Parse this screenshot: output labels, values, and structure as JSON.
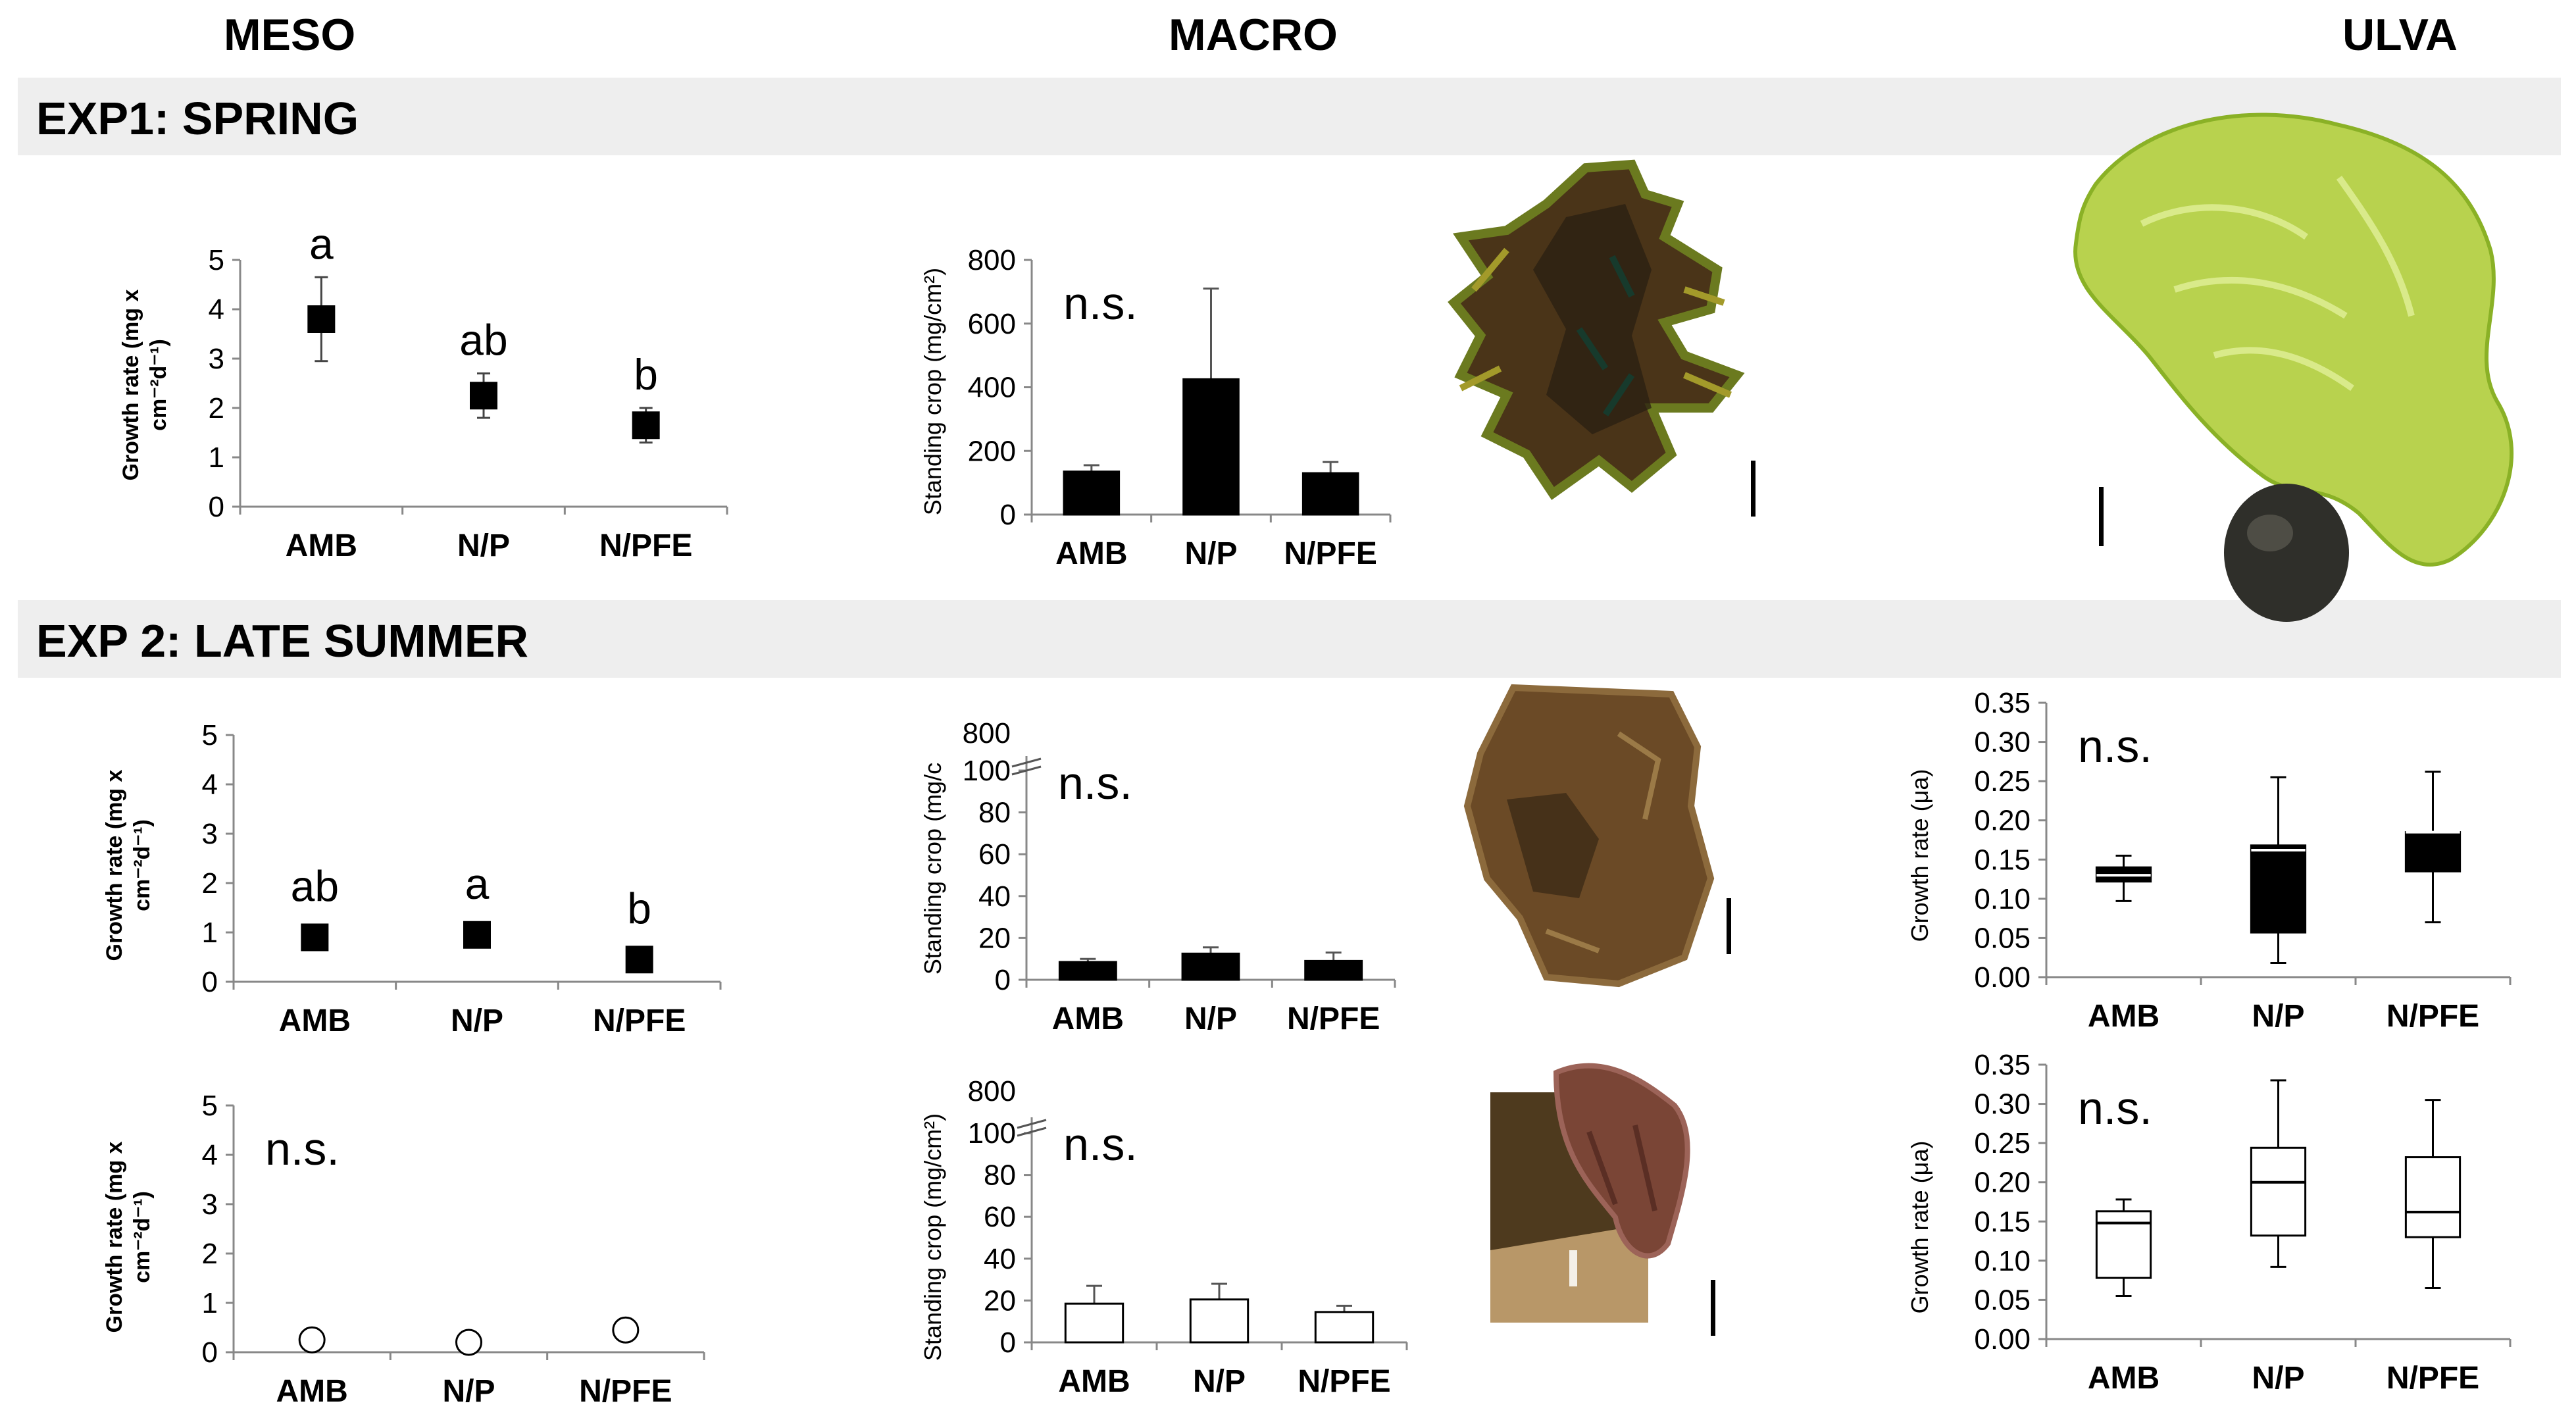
{
  "columns": {
    "meso": "MESO",
    "macro": "MACRO",
    "ulva": "ULVA"
  },
  "experiments": {
    "exp1": "EXP1: SPRING",
    "exp2": "EXP 2: LATE SUMMER"
  },
  "colors": {
    "band": "#eeeeee",
    "filled": "#000000",
    "open": "#ffffff"
  },
  "chart_data": [
    {
      "id": "meso-exp1",
      "type": "scatter",
      "categories": [
        "AMB",
        "N/P",
        "N/PFE"
      ],
      "values": [
        3.8,
        2.25,
        1.65
      ],
      "error": [
        0.85,
        0.45,
        0.35
      ],
      "marker": "filled-square",
      "letters": [
        "a",
        "ab",
        "b"
      ],
      "ylabel": "Growth rate (mg x cm-2d-1)",
      "ylabel_lines": [
        "Growth rate (mg x",
        "cm⁻²d⁻¹)"
      ],
      "yticks": [
        "0",
        "1",
        "2",
        "3",
        "4",
        "5"
      ],
      "ylim": [
        0,
        5
      ]
    },
    {
      "id": "macro-exp1",
      "type": "bar",
      "categories": [
        "AMB",
        "N/P",
        "N/PFE"
      ],
      "values": [
        135,
        425,
        130
      ],
      "error": [
        20,
        285,
        35
      ],
      "fill": "filled",
      "annotation": "n.s.",
      "ylabel": "Standing crop (mg/cm²)",
      "yticks": [
        "0",
        "200",
        "400",
        "600",
        "800"
      ],
      "ylim": [
        0,
        800
      ]
    },
    {
      "id": "meso-exp2-filled",
      "type": "scatter",
      "categories": [
        "AMB",
        "N/P",
        "N/PFE"
      ],
      "values": [
        0.9,
        0.95,
        0.45
      ],
      "error": [
        0,
        0,
        0
      ],
      "marker": "filled-square",
      "letters": [
        "ab",
        "a",
        "b"
      ],
      "ylabel": "Growth rate (mg x cm-2d-1)",
      "ylabel_lines": [
        "Growth rate (mg x",
        "cm⁻²d⁻¹)"
      ],
      "yticks": [
        "0",
        "1",
        "2",
        "3",
        "4",
        "5"
      ],
      "ylim": [
        0,
        5
      ]
    },
    {
      "id": "meso-exp2-open",
      "type": "scatter",
      "categories": [
        "AMB",
        "N/P",
        "N/PFE"
      ],
      "values": [
        0.25,
        0.2,
        0.45
      ],
      "error": [
        0,
        0,
        0
      ],
      "marker": "open-circle",
      "annotation": "n.s.",
      "ylabel": "Growth rate (mg x cm-2d-1)",
      "ylabel_lines": [
        "Growth rate (mg x",
        "cm⁻²d⁻¹)"
      ],
      "yticks": [
        "0",
        "1",
        "2",
        "3",
        "4",
        "5"
      ],
      "ylim": [
        0,
        5
      ]
    },
    {
      "id": "macro-exp2-filled",
      "type": "bar",
      "categories": [
        "AMB",
        "N/P",
        "N/PFE"
      ],
      "values": [
        8.5,
        12.5,
        9
      ],
      "error": [
        1.5,
        3,
        4
      ],
      "fill": "filled",
      "annotation": "n.s.",
      "ylabel": "Standing crop (mg/c",
      "yticks": [
        "0",
        "20",
        "40",
        "60",
        "80",
        "100",
        "800"
      ],
      "ylim": [
        0,
        100
      ],
      "axis_break": true
    },
    {
      "id": "macro-exp2-open",
      "type": "bar",
      "categories": [
        "AMB",
        "N/P",
        "N/PFE"
      ],
      "values": [
        18.5,
        20.5,
        14.5
      ],
      "error": [
        8.5,
        7.5,
        3
      ],
      "fill": "open",
      "annotation": "n.s.",
      "ylabel": "Standing crop (mg/cm²)",
      "yticks": [
        "0",
        "20",
        "40",
        "60",
        "80",
        "100",
        "800"
      ],
      "ylim": [
        0,
        100
      ],
      "axis_break": true
    },
    {
      "id": "ulva-exp2-filled",
      "type": "box",
      "categories": [
        "AMB",
        "N/P",
        "N/PFE"
      ],
      "boxes": [
        {
          "min": 0.097,
          "q1": 0.122,
          "median": 0.13,
          "q3": 0.14,
          "max": 0.155
        },
        {
          "min": 0.018,
          "q1": 0.057,
          "median": 0.162,
          "q3": 0.168,
          "max": 0.255
        },
        {
          "min": 0.07,
          "q1": 0.135,
          "median": 0.185,
          "q3": 0.185,
          "max": 0.262
        }
      ],
      "fill": "filled",
      "annotation": "n.s.",
      "ylabel": "Growth rate (μa)",
      "yticks": [
        "0.00",
        "0.05",
        "0.10",
        "0.15",
        "0.20",
        "0.25",
        "0.30",
        "0.35"
      ],
      "ylim": [
        0,
        0.35
      ]
    },
    {
      "id": "ulva-exp2-open",
      "type": "box",
      "categories": [
        "AMB",
        "N/P",
        "N/PFE"
      ],
      "boxes": [
        {
          "min": 0.055,
          "q1": 0.078,
          "median": 0.148,
          "q3": 0.163,
          "max": 0.178
        },
        {
          "min": 0.092,
          "q1": 0.132,
          "median": 0.2,
          "q3": 0.244,
          "max": 0.33
        },
        {
          "min": 0.065,
          "q1": 0.13,
          "median": 0.162,
          "q3": 0.232,
          "max": 0.305
        }
      ],
      "fill": "open",
      "annotation": "n.s.",
      "ylabel": "Growth rate (μa)",
      "yticks": [
        "0.00",
        "0.05",
        "0.10",
        "0.15",
        "0.20",
        "0.25",
        "0.30",
        "0.35"
      ],
      "ylim": [
        0,
        0.35
      ]
    }
  ]
}
